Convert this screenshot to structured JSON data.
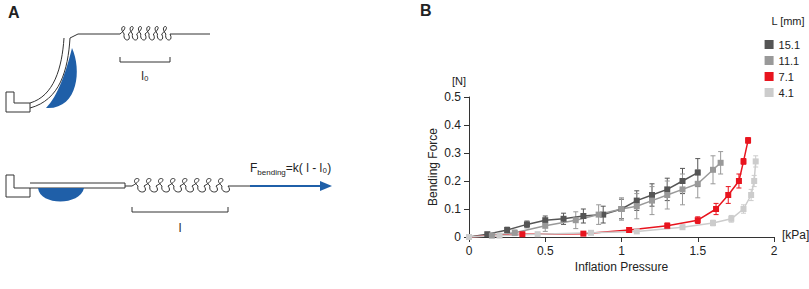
{
  "diagram": {
    "panel_label": "A",
    "rest_length_label": "l₀",
    "length_label": "l",
    "force_label": {
      "symbol": "F",
      "subscript": "bending",
      "text": "=k( l - l₀)"
    }
  },
  "chart_data": {
    "type": "line",
    "panel_label": "B",
    "xlabel": "Inflation Pressure",
    "xunit": "[kPa]",
    "ylabel": "Bending Force",
    "yunit": "[N]",
    "legend_title": "L [mm]",
    "legend": "upper right",
    "xlim": [
      0,
      2
    ],
    "xticks": [
      0,
      0.5,
      1,
      1.5,
      2
    ],
    "ylim": [
      0,
      0.5
    ],
    "yticks": [
      0,
      0.1,
      0.2,
      0.3,
      0.4,
      0.5
    ],
    "grid": false,
    "marker": "square",
    "series": [
      {
        "name": "15.1",
        "color": "#555555",
        "x": [
          0,
          0.12,
          0.25,
          0.38,
          0.5,
          0.62,
          0.75,
          0.88,
          1.0,
          1.1,
          1.2,
          1.3,
          1.4,
          1.5
        ],
        "values": [
          0,
          0.01,
          0.025,
          0.045,
          0.06,
          0.065,
          0.075,
          0.08,
          0.1,
          0.13,
          0.15,
          0.17,
          0.2,
          0.23
        ],
        "errors": [
          0,
          0.005,
          0.01,
          0.012,
          0.015,
          0.02,
          0.025,
          0.03,
          0.035,
          0.035,
          0.04,
          0.04,
          0.045,
          0.05
        ]
      },
      {
        "name": "11.1",
        "color": "#999999",
        "x": [
          0,
          0.15,
          0.3,
          0.5,
          0.7,
          0.85,
          1.0,
          1.1,
          1.2,
          1.3,
          1.4,
          1.5,
          1.6,
          1.65
        ],
        "values": [
          0,
          0.005,
          0.015,
          0.04,
          0.06,
          0.08,
          0.1,
          0.11,
          0.13,
          0.15,
          0.17,
          0.19,
          0.24,
          0.265
        ],
        "errors": [
          0,
          0.005,
          0.01,
          0.02,
          0.03,
          0.035,
          0.04,
          0.045,
          0.05,
          0.05,
          0.055,
          0.05,
          0.05,
          0.04
        ]
      },
      {
        "name": "7.1",
        "color": "#e8141e",
        "x": [
          0,
          0.35,
          0.75,
          1.05,
          1.3,
          1.5,
          1.62,
          1.7,
          1.77,
          1.8,
          1.83
        ],
        "values": [
          0,
          0.01,
          0.012,
          0.025,
          0.04,
          0.06,
          0.1,
          0.15,
          0.2,
          0.27,
          0.345
        ],
        "errors": [
          0,
          0.003,
          0.005,
          0.008,
          0.01,
          0.012,
          0.02,
          0.03,
          0.025,
          0.01,
          0.01
        ]
      },
      {
        "name": "4.1",
        "color": "#cccccc",
        "x": [
          0,
          0.2,
          0.45,
          0.8,
          1.1,
          1.4,
          1.6,
          1.72,
          1.8,
          1.85,
          1.87,
          1.88
        ],
        "values": [
          0,
          0.005,
          0.01,
          0.015,
          0.02,
          0.035,
          0.05,
          0.065,
          0.1,
          0.15,
          0.2,
          0.27
        ],
        "errors": [
          0,
          0.003,
          0.004,
          0.005,
          0.006,
          0.008,
          0.01,
          0.012,
          0.015,
          0.02,
          0.02,
          0.02
        ]
      }
    ]
  }
}
